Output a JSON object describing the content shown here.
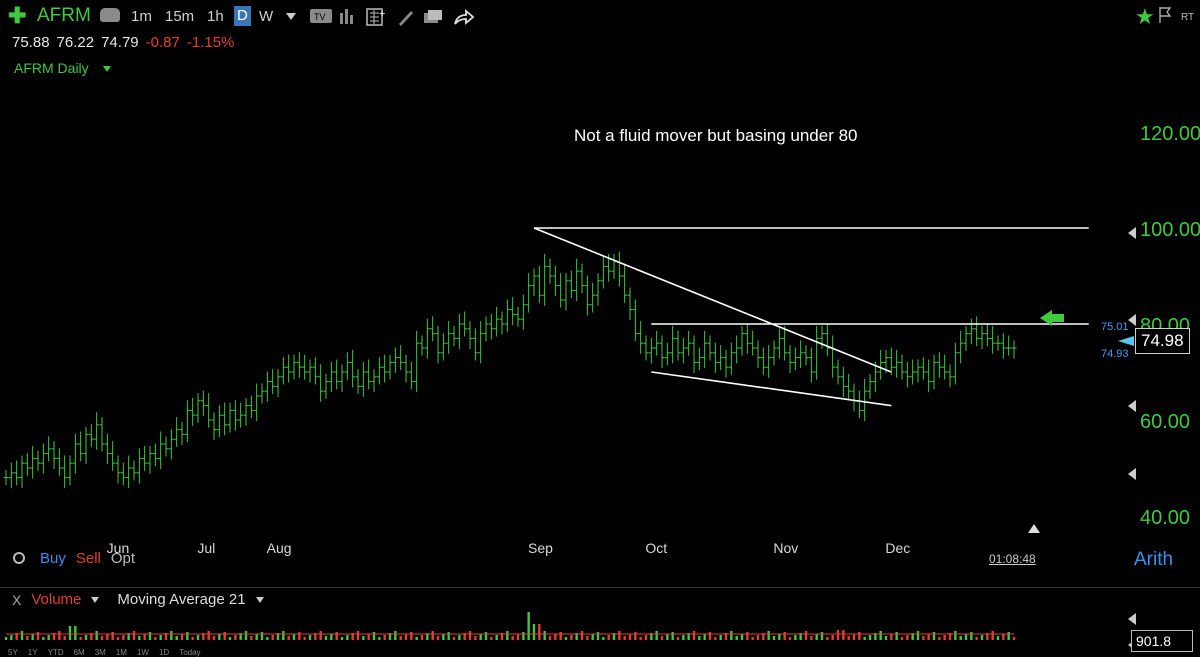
{
  "toolbar": {
    "symbol": "AFRM",
    "timeframes": [
      "1m",
      "15m",
      "1h",
      "D",
      "W"
    ],
    "active_timeframe": "D",
    "rt_label": "RT"
  },
  "quote": {
    "open": "75.88",
    "high": "76.22",
    "low": "74.79",
    "change": "-0.87",
    "change_pct": "-1.15%"
  },
  "chart_title": "AFRM Daily",
  "annotation_text": "Not a fluid mover but basing under 80",
  "price_axis": {
    "labels": [
      "120.00",
      "100.00",
      "80.00",
      "60.00",
      "40.00"
    ]
  },
  "current_price": {
    "label": "74.98",
    "bid": "75.01",
    "ask": "74.93"
  },
  "trade": {
    "buy": "Buy",
    "sell": "Sell",
    "opt": "Opt"
  },
  "scale_mode": "Arith",
  "clock": "01:08:48",
  "volume_panel": {
    "close": "X",
    "name": "Volume",
    "ma": "Moving Average 21",
    "value": "901.8"
  },
  "ranges": [
    "5Y",
    "1Y",
    "YTD",
    "6M",
    "3M",
    "1M",
    "1W",
    "1D",
    "Today"
  ],
  "colors": {
    "up": "#3ec93e",
    "down": "#e0402f",
    "accent": "#3a8ff0",
    "annotation": "#ffffff"
  },
  "chart_data": {
    "type": "ohlc",
    "y_scale": "linear",
    "ylim": [
      35,
      135
    ],
    "x_labels": [
      "Jun",
      "Jul",
      "Aug",
      "Sep",
      "Oct",
      "Nov",
      "Dec"
    ],
    "closes": [
      48,
      49,
      48,
      51,
      50,
      52,
      51,
      53,
      54,
      52,
      50,
      48,
      51,
      55,
      53,
      57,
      56,
      59,
      55,
      53,
      51,
      49,
      48,
      50,
      49,
      52,
      51,
      53,
      52,
      55,
      54,
      56,
      58,
      57,
      62,
      61,
      64,
      63,
      60,
      58,
      61,
      59,
      62,
      60,
      61,
      63,
      62,
      65,
      66,
      68,
      67,
      69,
      71,
      70,
      72,
      71,
      70,
      71,
      69,
      66,
      68,
      70,
      68,
      70,
      72,
      69,
      67,
      70,
      68,
      69,
      71,
      70,
      72,
      73,
      72,
      70,
      68,
      76,
      75,
      79,
      78,
      74,
      76,
      78,
      77,
      80,
      79,
      77,
      74,
      78,
      80,
      79,
      81,
      80,
      83,
      82,
      81,
      84,
      88,
      90,
      86,
      92,
      90,
      88,
      85,
      89,
      87,
      91,
      88,
      84,
      86,
      89,
      92,
      91,
      93,
      90,
      86,
      83,
      78,
      76,
      74,
      75,
      76,
      73,
      74,
      77,
      74,
      75,
      76,
      72,
      73,
      76,
      74,
      72,
      73,
      71,
      74,
      75,
      78,
      76,
      75,
      73,
      71,
      73,
      75,
      77,
      74,
      72,
      73,
      74,
      73,
      70,
      77,
      78,
      75,
      71,
      69,
      67,
      66,
      64,
      62,
      66,
      68,
      70,
      72,
      73,
      71,
      72,
      70,
      69,
      70,
      71,
      70,
      68,
      72,
      71,
      70,
      69,
      74,
      76,
      78,
      79,
      77,
      78,
      77,
      76,
      76,
      75,
      75,
      74.98
    ],
    "volume_ma": "Moving Average 21"
  },
  "trendlines": [
    {
      "name": "horizontal-resistance-100",
      "from": {
        "date": "Sep",
        "price": 100
      },
      "to": {
        "date": "Jan",
        "price": 100
      }
    },
    {
      "name": "descending-trendline",
      "from": {
        "date": "Sep",
        "price": 100
      },
      "to": {
        "date": "Dec",
        "price": 70
      }
    },
    {
      "name": "horizontal-resistance-80",
      "from": {
        "date": "Oct",
        "price": 80
      },
      "to": {
        "date": "Jan",
        "price": 80
      }
    },
    {
      "name": "lower-support-line",
      "from": {
        "date": "Oct",
        "price": 70
      },
      "to": {
        "date": "Dec",
        "price": 63
      }
    }
  ]
}
